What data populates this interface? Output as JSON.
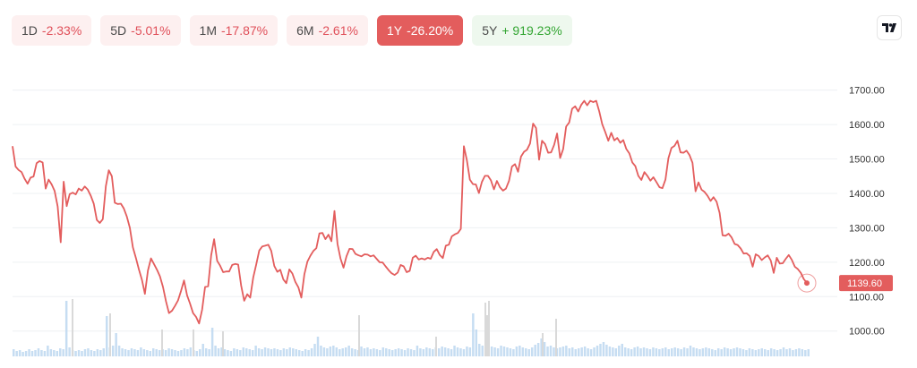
{
  "tabs": [
    {
      "period": "1D",
      "change": "-2.33%",
      "state": "neg"
    },
    {
      "period": "5D",
      "change": "-5.01%",
      "state": "neg"
    },
    {
      "period": "1M",
      "change": "-17.87%",
      "state": "neg"
    },
    {
      "period": "6M",
      "change": "-2.61%",
      "state": "neg"
    },
    {
      "period": "1Y",
      "change": "-26.20%",
      "state": "active"
    },
    {
      "period": "5Y",
      "change": "+ 919.23%",
      "state": "pos"
    }
  ],
  "logo_icon": "tradingview-logo-icon",
  "colors": {
    "line": "#e35d5d",
    "volume": "#bcd7f0",
    "volume_spike": "#d9d9d9",
    "grid": "#eef0f3",
    "positive": "#33a532",
    "negative": "#e0505a"
  },
  "chart_data": {
    "type": "line",
    "y_ticks": [
      "1700.00",
      "1600.00",
      "1500.00",
      "1400.00",
      "1300.00",
      "1200.00",
      "1100.00",
      "1000.00"
    ],
    "ylim": [
      960,
      1740
    ],
    "last_price": "1139.60",
    "grid": true,
    "series": [
      {
        "values": [
          1537,
          1478,
          1468,
          1462,
          1443,
          1428,
          1446,
          1449,
          1488,
          1494,
          1490,
          1414,
          1440,
          1426,
          1407,
          1362,
          1258,
          1434,
          1363,
          1398,
          1402,
          1397,
          1414,
          1408,
          1420,
          1411,
          1393,
          1370,
          1323,
          1314,
          1325,
          1421,
          1467,
          1450,
          1373,
          1369,
          1370,
          1356,
          1332,
          1300,
          1243,
          1212,
          1179,
          1149,
          1108,
          1176,
          1211,
          1195,
          1178,
          1159,
          1128,
          1086,
          1052,
          1059,
          1073,
          1089,
          1117,
          1147,
          1104,
          1080,
          1052,
          1041,
          1022,
          1062,
          1128,
          1130,
          1220,
          1267,
          1204,
          1190,
          1171,
          1173,
          1173,
          1192,
          1195,
          1193,
          1132,
          1088,
          1107,
          1097,
          1156,
          1193,
          1234,
          1246,
          1248,
          1251,
          1233,
          1189,
          1172,
          1178,
          1150,
          1139,
          1179,
          1167,
          1143,
          1127,
          1097,
          1165,
          1202,
          1219,
          1233,
          1241,
          1284,
          1285,
          1267,
          1280,
          1261,
          1349,
          1253,
          1211,
          1184,
          1217,
          1239,
          1238,
          1224,
          1220,
          1217,
          1223,
          1222,
          1217,
          1220,
          1210,
          1200,
          1199,
          1188,
          1177,
          1168,
          1163,
          1170,
          1192,
          1188,
          1171,
          1175,
          1213,
          1219,
          1208,
          1211,
          1208,
          1213,
          1210,
          1230,
          1238,
          1221,
          1212,
          1248,
          1251,
          1275,
          1281,
          1285,
          1297,
          1537,
          1497,
          1440,
          1427,
          1426,
          1401,
          1433,
          1451,
          1451,
          1438,
          1412,
          1436,
          1418,
          1408,
          1414,
          1436,
          1478,
          1485,
          1463,
          1507,
          1521,
          1527,
          1545,
          1603,
          1590,
          1498,
          1553,
          1543,
          1518,
          1519,
          1541,
          1574,
          1503,
          1529,
          1594,
          1606,
          1646,
          1653,
          1638,
          1657,
          1669,
          1656,
          1669,
          1665,
          1669,
          1638,
          1601,
          1578,
          1553,
          1576,
          1554,
          1561,
          1547,
          1555,
          1529,
          1516,
          1490,
          1479,
          1451,
          1439,
          1462,
          1451,
          1437,
          1447,
          1433,
          1418,
          1415,
          1440,
          1502,
          1532,
          1538,
          1553,
          1519,
          1518,
          1524,
          1511,
          1489,
          1406,
          1432,
          1411,
          1404,
          1393,
          1378,
          1389,
          1376,
          1343,
          1278,
          1277,
          1283,
          1272,
          1253,
          1250,
          1240,
          1225,
          1226,
          1218,
          1187,
          1223,
          1218,
          1206,
          1214,
          1220,
          1205,
          1169,
          1213,
          1196,
          1197,
          1210,
          1221,
          1207,
          1187,
          1180,
          1169,
          1151,
          1140
        ]
      }
    ],
    "volume": [
      8,
      6,
      7,
      5,
      6,
      8,
      6,
      7,
      9,
      7,
      6,
      12,
      8,
      7,
      6,
      9,
      8,
      62,
      10,
      7,
      6,
      7,
      6,
      8,
      9,
      7,
      6,
      8,
      7,
      9,
      45,
      10,
      12,
      26,
      12,
      9,
      8,
      7,
      9,
      8,
      7,
      10,
      8,
      7,
      6,
      9,
      8,
      7,
      8,
      7,
      9,
      8,
      7,
      6,
      7,
      9,
      8,
      10,
      7,
      6,
      8,
      14,
      9,
      8,
      32,
      12,
      9,
      10,
      8,
      7,
      6,
      9,
      8,
      7,
      10,
      9,
      8,
      7,
      12,
      9,
      8,
      10,
      9,
      8,
      9,
      8,
      7,
      9,
      8,
      10,
      9,
      8,
      7,
      6,
      8,
      7,
      9,
      14,
      22,
      12,
      10,
      9,
      11,
      12,
      10,
      8,
      9,
      10,
      12,
      9,
      8,
      7,
      11,
      9,
      10,
      8,
      9,
      8,
      7,
      10,
      9,
      8,
      7,
      8,
      9,
      8,
      7,
      9,
      8,
      7,
      12,
      9,
      8,
      10,
      9,
      8,
      10,
      9,
      11,
      10,
      9,
      8,
      12,
      10,
      9,
      8,
      11,
      10,
      48,
      30,
      14,
      12,
      10,
      9,
      11,
      10,
      9,
      12,
      11,
      10,
      9,
      8,
      11,
      12,
      10,
      9,
      8,
      10,
      13,
      15,
      20,
      16,
      11,
      12,
      10,
      9,
      10,
      11,
      12,
      9,
      10,
      8,
      9,
      10,
      11,
      9,
      8,
      10,
      12,
      14,
      16,
      13,
      11,
      10,
      9,
      12,
      14,
      10,
      9,
      8,
      10,
      11,
      9,
      10,
      9,
      8,
      10,
      9,
      8,
      9,
      10,
      8,
      9,
      10,
      9,
      8,
      10,
      9,
      12,
      10,
      9,
      8,
      9,
      10,
      9,
      8,
      7,
      9,
      8,
      10,
      9,
      8,
      9,
      10,
      9,
      8,
      7,
      9,
      8,
      7,
      8,
      9,
      8,
      7,
      9,
      8,
      7,
      8,
      10,
      8,
      9,
      7,
      8,
      9,
      8,
      7,
      8
    ],
    "volume_spikes": [
      [
        80,
        64
      ],
      [
        122,
        48
      ],
      [
        545,
        48
      ],
      [
        541,
        60
      ],
      [
        543,
        46
      ],
      [
        620,
        42
      ],
      [
        605,
        26
      ],
      [
        248,
        28
      ],
      [
        215,
        30
      ],
      [
        180,
        30
      ],
      [
        400,
        46
      ],
      [
        545,
        62
      ],
      [
        486,
        22
      ]
    ]
  }
}
